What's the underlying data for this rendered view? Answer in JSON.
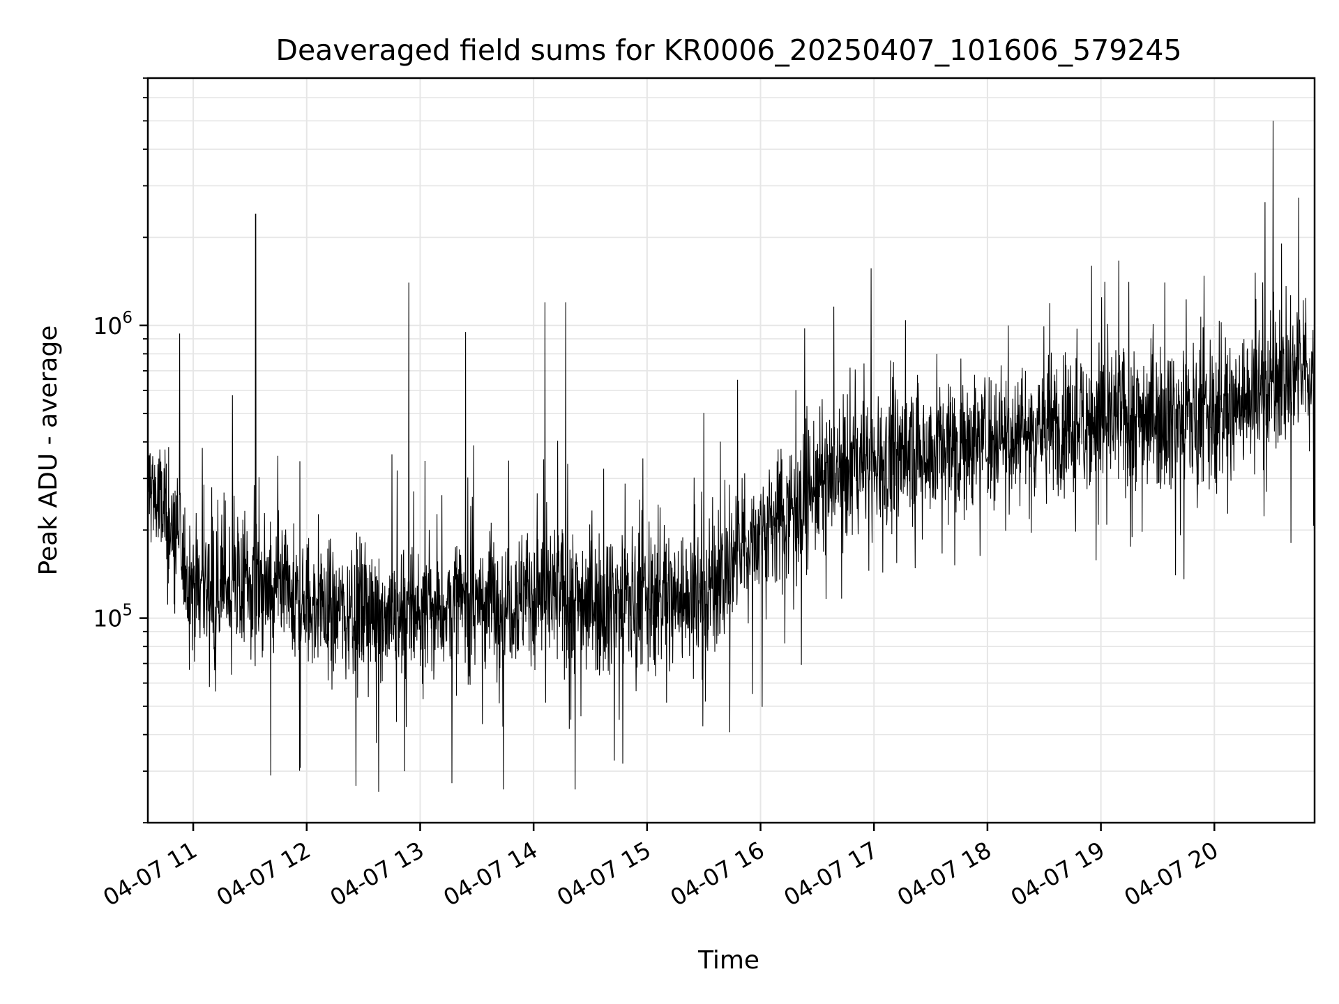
{
  "chart_data": {
    "type": "line",
    "title": "Deaveraged field sums for KR0006_20250407_101606_579245",
    "xlabel": "Time",
    "ylabel": "Peak ADU - average",
    "x_axis_type": "time",
    "xlim": [
      "2025-04-07 10:36",
      "2025-04-07 20:53"
    ],
    "y_scale": "log",
    "ylim": [
      20000,
      7000000
    ],
    "x_tick_labels": [
      "04-07 11",
      "04-07 12",
      "04-07 13",
      "04-07 14",
      "04-07 15",
      "04-07 16",
      "04-07 17",
      "04-07 18",
      "04-07 19",
      "04-07 20"
    ],
    "x_tick_times": [
      "2025-04-07 11:00",
      "2025-04-07 12:00",
      "2025-04-07 13:00",
      "2025-04-07 14:00",
      "2025-04-07 15:00",
      "2025-04-07 16:00",
      "2025-04-07 17:00",
      "2025-04-07 18:00",
      "2025-04-07 19:00",
      "2025-04-07 20:00"
    ],
    "y_ticks": [
      {
        "value": 100000,
        "base": "10",
        "exp": "5"
      },
      {
        "value": 1000000,
        "base": "10",
        "exp": "6"
      }
    ],
    "grid": true,
    "line_color": "#000000",
    "grid_color": "#e6e6e6",
    "series": [
      {
        "x": [
          "2025-04-07 10:36",
          "2025-04-07 11:00",
          "2025-04-07 11:30",
          "2025-04-07 12:00",
          "2025-04-07 12:30",
          "2025-04-07 13:00",
          "2025-04-07 13:30",
          "2025-04-07 14:00",
          "2025-04-07 14:30",
          "2025-04-07 15:00",
          "2025-04-07 15:30",
          "2025-04-07 16:00",
          "2025-04-07 16:30",
          "2025-04-07 17:00",
          "2025-04-07 17:30",
          "2025-04-07 18:00",
          "2025-04-07 18:30",
          "2025-04-07 19:00",
          "2025-04-07 19:30",
          "2025-04-07 20:00",
          "2025-04-07 20:30",
          "2025-04-07 20:53"
        ],
        "y": [
          300000,
          130000,
          130000,
          110000,
          105000,
          105000,
          115000,
          120000,
          115000,
          115000,
          120000,
          200000,
          280000,
          350000,
          380000,
          420000,
          450000,
          480000,
          500000,
          480000,
          650000,
          700000
        ]
      }
    ],
    "peaks": [
      {
        "x": "2025-04-07 11:33",
        "y": 2400000
      },
      {
        "x": "2025-04-07 12:54",
        "y": 1400000
      },
      {
        "x": "2025-04-07 13:24",
        "y": 950000
      },
      {
        "x": "2025-04-07 14:06",
        "y": 1200000
      },
      {
        "x": "2025-04-07 14:17",
        "y": 1200000
      },
      {
        "x": "2025-04-07 18:11",
        "y": 1000000
      },
      {
        "x": "2025-04-07 18:55",
        "y": 1600000
      },
      {
        "x": "2025-04-07 20:31",
        "y": 5000000
      }
    ],
    "troughs": [
      {
        "x": "2025-04-07 11:41",
        "y": 29000
      },
      {
        "x": "2025-04-07 13:44",
        "y": 26000
      },
      {
        "x": "2025-04-07 14:22",
        "y": 26000
      }
    ]
  }
}
